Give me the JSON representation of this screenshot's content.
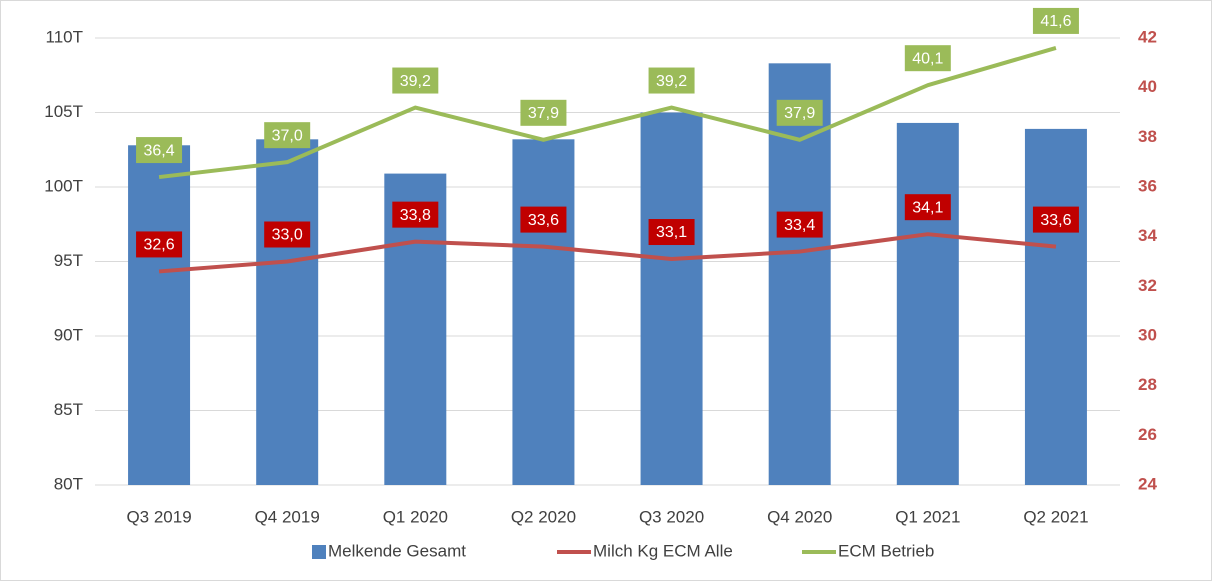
{
  "chart_data": {
    "type": "bar",
    "categories": [
      "Q3 2019",
      "Q4 2019",
      "Q1 2020",
      "Q2 2020",
      "Q3 2020",
      "Q4 2020",
      "Q1 2021",
      "Q2 2021"
    ],
    "series": [
      {
        "name": "Melkende Gesamt",
        "type": "bar",
        "color": "#4f81bd",
        "axis": "y",
        "values": [
          102800,
          103200,
          100900,
          103200,
          105000,
          108300,
          104300,
          103900
        ]
      },
      {
        "name": "Milch Kg ECM Alle",
        "type": "line",
        "color": "#c0504d",
        "label_color": "#c00000",
        "axis": "y2",
        "values": [
          32.6,
          33.0,
          33.8,
          33.6,
          33.1,
          33.4,
          34.1,
          33.6
        ],
        "value_labels": [
          "32,6",
          "33,0",
          "33,8",
          "33,6",
          "33,1",
          "33,4",
          "34,1",
          "33,6"
        ]
      },
      {
        "name": "ECM Betrieb",
        "type": "line",
        "color": "#9bbb59",
        "label_color": "#9bbb59",
        "axis": "y2",
        "values": [
          36.4,
          37.0,
          39.2,
          37.9,
          39.2,
          37.9,
          40.1,
          41.6
        ],
        "value_labels": [
          "36,4",
          "37,0",
          "39,2",
          "37,9",
          "39,2",
          "37,9",
          "40,1",
          "41,6"
        ]
      }
    ],
    "ylim": [
      80000,
      110000
    ],
    "yticks": [
      {
        "value": 80000,
        "label": "80T"
      },
      {
        "value": 85000,
        "label": "85T"
      },
      {
        "value": 90000,
        "label": "90T"
      },
      {
        "value": 95000,
        "label": "95T"
      },
      {
        "value": 100000,
        "label": "100T"
      },
      {
        "value": 105000,
        "label": "105T"
      },
      {
        "value": 110000,
        "label": "110T"
      }
    ],
    "y2lim": [
      24,
      42
    ],
    "y2ticks": [
      24,
      26,
      28,
      30,
      32,
      34,
      36,
      38,
      40,
      42
    ],
    "y2_color": "#c0504d",
    "grid": true,
    "legend": "bottom"
  }
}
